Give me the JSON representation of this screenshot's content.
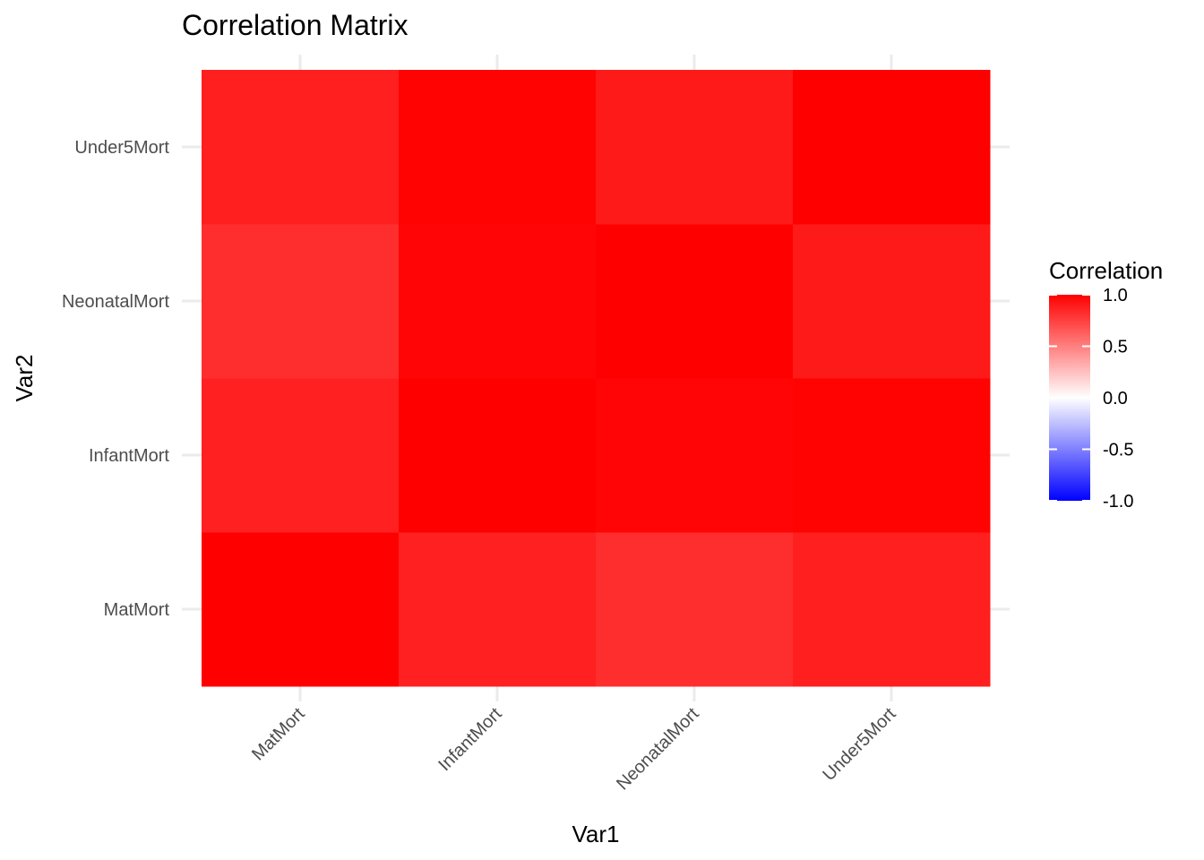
{
  "chart_data": {
    "type": "heatmap",
    "title": "Correlation Matrix",
    "xlabel": "Var1",
    "ylabel": "Var2",
    "x_categories": [
      "MatMort",
      "InfantMort",
      "NeonatalMort",
      "Under5Mort"
    ],
    "y_categories": [
      "MatMort",
      "InfantMort",
      "NeonatalMort",
      "Under5Mort"
    ],
    "values": [
      [
        1.0,
        0.87,
        0.82,
        0.88
      ],
      [
        0.87,
        1.0,
        0.98,
        0.99
      ],
      [
        0.82,
        0.98,
        1.0,
        0.9
      ],
      [
        0.88,
        0.99,
        0.9,
        1.0
      ]
    ],
    "color_scale": {
      "low": "#0000ff",
      "mid": "#ffffff",
      "high": "#ff0000",
      "limits": [
        -1.0,
        1.0
      ]
    },
    "legend": {
      "title": "Correlation",
      "position": "right",
      "breaks": [
        1.0,
        0.5,
        0.0,
        -0.5,
        -1.0
      ],
      "break_labels": [
        "1.0",
        "0.5",
        "0.0",
        "-0.5",
        "-1.0"
      ]
    },
    "grid": true
  }
}
